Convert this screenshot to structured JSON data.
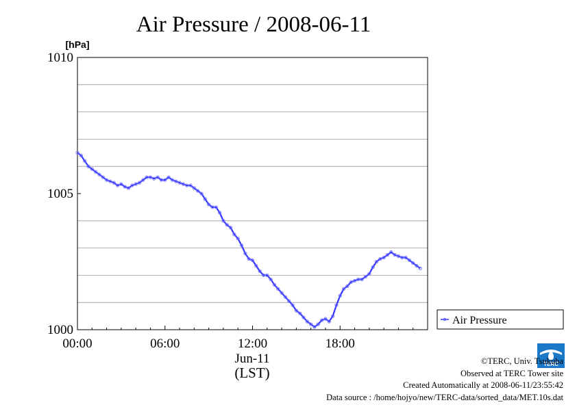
{
  "chart_data": {
    "type": "line",
    "title": "Air Pressure / 2008-06-11",
    "ylabel": "[hPa]",
    "xlabel": "Jun-11",
    "xlabel2": "(LST)",
    "ylim": [
      1000,
      1010
    ],
    "xlim_hours": [
      0,
      23.5
    ],
    "yticks": [
      {
        "value": 1000,
        "label": "1000"
      },
      {
        "value": 1005,
        "label": "1005"
      },
      {
        "value": 1010,
        "label": "1010"
      }
    ],
    "ygrid": [
      1001,
      1002,
      1003,
      1004,
      1006,
      1007,
      1008,
      1009
    ],
    "xticks": [
      {
        "value": 0,
        "label": "00:00"
      },
      {
        "value": 6,
        "label": "06:00"
      },
      {
        "value": 12,
        "label": "12:00"
      },
      {
        "value": 18,
        "label": "18:00"
      }
    ],
    "grid": true,
    "legend_position": "right",
    "series": [
      {
        "name": "Air Pressure",
        "color": "#3333ff",
        "x": [
          0,
          0.25,
          0.5,
          0.75,
          1.0,
          1.25,
          1.5,
          1.75,
          2.0,
          2.25,
          2.5,
          2.75,
          3.0,
          3.25,
          3.5,
          3.75,
          4.0,
          4.25,
          4.5,
          4.75,
          5.0,
          5.25,
          5.5,
          5.75,
          6.0,
          6.25,
          6.5,
          6.75,
          7.0,
          7.25,
          7.5,
          7.75,
          8.0,
          8.25,
          8.5,
          8.75,
          9.0,
          9.25,
          9.5,
          9.75,
          10.0,
          10.25,
          10.5,
          10.75,
          11.0,
          11.25,
          11.5,
          11.75,
          12.0,
          12.25,
          12.5,
          12.75,
          13.0,
          13.25,
          13.5,
          13.75,
          14.0,
          14.25,
          14.5,
          14.75,
          15.0,
          15.25,
          15.5,
          15.75,
          16.0,
          16.25,
          16.5,
          16.75,
          17.0,
          17.25,
          17.5,
          17.75,
          18.0,
          18.25,
          18.5,
          18.75,
          19.0,
          19.25,
          19.5,
          19.75,
          20.0,
          20.25,
          20.5,
          20.75,
          21.0,
          21.25,
          21.5,
          21.75,
          22.0,
          22.25,
          22.5,
          22.75,
          23.0,
          23.25,
          23.5
        ],
        "y": [
          1006.5,
          1006.4,
          1006.2,
          1006.0,
          1005.9,
          1005.8,
          1005.7,
          1005.6,
          1005.5,
          1005.45,
          1005.4,
          1005.3,
          1005.35,
          1005.25,
          1005.2,
          1005.3,
          1005.35,
          1005.4,
          1005.5,
          1005.6,
          1005.6,
          1005.55,
          1005.6,
          1005.5,
          1005.5,
          1005.6,
          1005.5,
          1005.45,
          1005.4,
          1005.35,
          1005.3,
          1005.3,
          1005.2,
          1005.1,
          1005.0,
          1004.8,
          1004.6,
          1004.5,
          1004.5,
          1004.3,
          1004.0,
          1003.85,
          1003.75,
          1003.5,
          1003.35,
          1003.1,
          1002.8,
          1002.6,
          1002.55,
          1002.35,
          1002.15,
          1002.0,
          1002.0,
          1001.85,
          1001.65,
          1001.5,
          1001.35,
          1001.2,
          1001.05,
          1000.9,
          1000.7,
          1000.6,
          1000.45,
          1000.3,
          1000.2,
          1000.1,
          1000.2,
          1000.35,
          1000.4,
          1000.3,
          1000.5,
          1000.9,
          1001.25,
          1001.5,
          1001.6,
          1001.75,
          1001.8,
          1001.85,
          1001.85,
          1001.95,
          1002.05,
          1002.3,
          1002.5,
          1002.6,
          1002.65,
          1002.75,
          1002.85,
          1002.75,
          1002.7,
          1002.65,
          1002.65,
          1002.55,
          1002.45,
          1002.35,
          1002.25
        ]
      }
    ]
  },
  "credits": {
    "copyright": "©TERC, Univ. Tsukuba",
    "observed": "Observed at TERC Tower site",
    "created": "Created Automatically at 2008-06-11/23:55:42",
    "source": "Data source : /home/hojyo/new/TERC-data/sorted_data/MET.10s.dat"
  },
  "logo": {
    "text": "TERC",
    "color": "#1a78c8"
  }
}
